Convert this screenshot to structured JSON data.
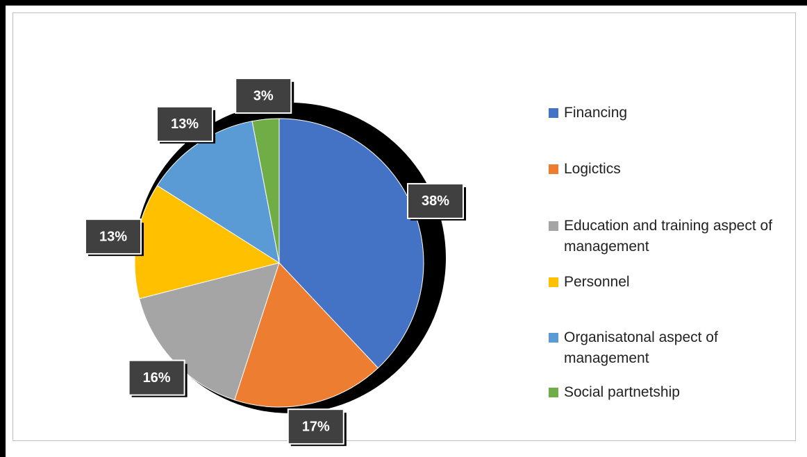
{
  "chart_data": {
    "type": "pie",
    "categories": [
      "Financing",
      "Logictics",
      "Education and training aspect of management",
      "Personnel",
      "Organisatonal aspect of management",
      "Social partnetship"
    ],
    "values": [
      38,
      17,
      16,
      13,
      13,
      3
    ],
    "value_labels": [
      "38%",
      "17%",
      "16%",
      "13%",
      "13%",
      "3%"
    ],
    "colors": [
      "#4472c4",
      "#ed7d31",
      "#a5a5a5",
      "#ffc000",
      "#5b9bd5",
      "#70ad47"
    ],
    "legend": "right"
  }
}
